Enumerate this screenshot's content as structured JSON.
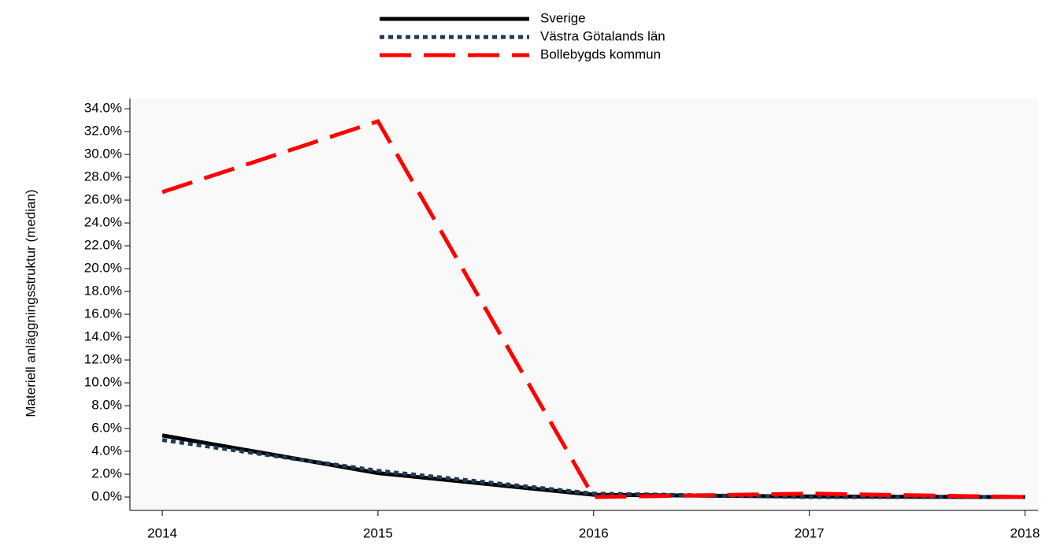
{
  "chart_data": {
    "type": "line",
    "y_label": "Materiell anläggningsstruktur (median)",
    "x": [
      2014,
      2015,
      2016,
      2017,
      2018
    ],
    "xlim": [
      2013.85,
      2018.06
    ],
    "xticks": [
      2014,
      2015,
      2016,
      2017,
      2018
    ],
    "ylim": [
      -1.17,
      34.9
    ],
    "yticks": [
      {
        "value": 0,
        "label": "0.0%"
      },
      {
        "value": 2,
        "label": "2.0%"
      },
      {
        "value": 4,
        "label": "4.0%"
      },
      {
        "value": 6,
        "label": "6.0%"
      },
      {
        "value": 8,
        "label": "8.0%"
      },
      {
        "value": 10,
        "label": "10.0%"
      },
      {
        "value": 12,
        "label": "12.0%"
      },
      {
        "value": 14,
        "label": "14.0%"
      },
      {
        "value": 16,
        "label": "16.0%"
      },
      {
        "value": 18,
        "label": "18.0%"
      },
      {
        "value": 20,
        "label": "20.0%"
      },
      {
        "value": 22,
        "label": "22.0%"
      },
      {
        "value": 24,
        "label": "24.0%"
      },
      {
        "value": 26,
        "label": "26.0%"
      },
      {
        "value": 28,
        "label": "28.0%"
      },
      {
        "value": 30,
        "label": "30.0%"
      },
      {
        "value": 32,
        "label": "32.0%"
      },
      {
        "value": 34,
        "label": "34.0%"
      }
    ],
    "series": [
      {
        "name": "Sverige",
        "color": "#000000",
        "dash": "solid",
        "values": [
          5.4,
          2.1,
          0.2,
          0.05,
          0.0
        ]
      },
      {
        "name": "Västra Götalands län",
        "color": "#1f3a5a",
        "dash": "dotted",
        "values": [
          5.0,
          2.3,
          0.3,
          0.0,
          0.0
        ]
      },
      {
        "name": "Bollebygds kommun",
        "color": "#ff0000",
        "dash": "dashed",
        "values": [
          26.7,
          32.9,
          0.0,
          0.3,
          0.0
        ]
      }
    ],
    "legend": "top"
  }
}
